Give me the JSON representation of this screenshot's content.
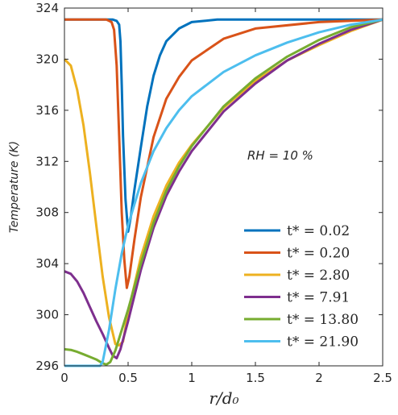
{
  "chart_data": {
    "type": "line",
    "xlabel": "r/d₀",
    "ylabel": "Temperature (K)",
    "annotation": "RH = 10 %",
    "xlim": [
      0,
      2.5
    ],
    "ylim": [
      296,
      324
    ],
    "xticks": [
      "0",
      "0.5",
      "1",
      "1.5",
      "2",
      "2.5"
    ],
    "yticks": [
      "296",
      "300",
      "304",
      "308",
      "312",
      "316",
      "320",
      "324"
    ],
    "grid": false,
    "legend_position": "bottom-right",
    "series": [
      {
        "name": "t* = 0.02",
        "color": "#0072BD",
        "points": [
          [
            0,
            323.1
          ],
          [
            0.2,
            323.1
          ],
          [
            0.38,
            323.1
          ],
          [
            0.41,
            323.0
          ],
          [
            0.43,
            322.7
          ],
          [
            0.44,
            321.4
          ],
          [
            0.45,
            318
          ],
          [
            0.46,
            314
          ],
          [
            0.48,
            309
          ],
          [
            0.5,
            306.5
          ],
          [
            0.52,
            307.6
          ],
          [
            0.55,
            309.8
          ],
          [
            0.6,
            313.1
          ],
          [
            0.65,
            316.3
          ],
          [
            0.7,
            318.7
          ],
          [
            0.75,
            320.3
          ],
          [
            0.8,
            321.4
          ],
          [
            0.9,
            322.4
          ],
          [
            1.0,
            322.9
          ],
          [
            1.2,
            323.1
          ],
          [
            1.5,
            323.1
          ],
          [
            2.0,
            323.1
          ],
          [
            2.5,
            323.1
          ]
        ]
      },
      {
        "name": "t* = 0.20",
        "color": "#D95319",
        "points": [
          [
            0,
            323.1
          ],
          [
            0.2,
            323.1
          ],
          [
            0.33,
            323.1
          ],
          [
            0.37,
            322.9
          ],
          [
            0.39,
            322.3
          ],
          [
            0.41,
            319.5
          ],
          [
            0.43,
            314
          ],
          [
            0.45,
            308
          ],
          [
            0.47,
            304.3
          ],
          [
            0.49,
            302.1
          ],
          [
            0.51,
            303.0
          ],
          [
            0.55,
            305.9
          ],
          [
            0.6,
            309.2
          ],
          [
            0.7,
            313.9
          ],
          [
            0.8,
            316.9
          ],
          [
            0.9,
            318.6
          ],
          [
            1.0,
            319.9
          ],
          [
            1.25,
            321.6
          ],
          [
            1.5,
            322.4
          ],
          [
            2.0,
            322.9
          ],
          [
            2.5,
            323.1
          ]
        ]
      },
      {
        "name": "t* = 2.80",
        "color": "#EDB120",
        "points": [
          [
            0,
            320.0
          ],
          [
            0.05,
            319.5
          ],
          [
            0.1,
            317.6
          ],
          [
            0.15,
            314.8
          ],
          [
            0.2,
            311.1
          ],
          [
            0.25,
            307.0
          ],
          [
            0.3,
            303.0
          ],
          [
            0.35,
            299.8
          ],
          [
            0.4,
            297.7
          ],
          [
            0.43,
            297.6
          ],
          [
            0.46,
            297.9
          ],
          [
            0.5,
            300.2
          ],
          [
            0.6,
            304.5
          ],
          [
            0.7,
            307.7
          ],
          [
            0.8,
            310.1
          ],
          [
            0.9,
            311.9
          ],
          [
            1.0,
            313.3
          ],
          [
            1.25,
            316.2
          ],
          [
            1.5,
            318.3
          ],
          [
            1.75,
            319.9
          ],
          [
            2.0,
            321.1
          ],
          [
            2.25,
            322.2
          ],
          [
            2.5,
            323.1
          ]
        ]
      },
      {
        "name": "t* = 7.91",
        "color": "#7E2F8E",
        "points": [
          [
            0,
            303.4
          ],
          [
            0.05,
            303.2
          ],
          [
            0.1,
            302.6
          ],
          [
            0.15,
            301.7
          ],
          [
            0.2,
            300.6
          ],
          [
            0.25,
            299.5
          ],
          [
            0.3,
            298.5
          ],
          [
            0.35,
            297.4
          ],
          [
            0.38,
            296.8
          ],
          [
            0.41,
            296.6
          ],
          [
            0.44,
            297.3
          ],
          [
            0.5,
            299.5
          ],
          [
            0.6,
            303.5
          ],
          [
            0.7,
            306.8
          ],
          [
            0.8,
            309.3
          ],
          [
            0.9,
            311.2
          ],
          [
            1.0,
            312.8
          ],
          [
            1.25,
            315.9
          ],
          [
            1.5,
            318.1
          ],
          [
            1.75,
            319.9
          ],
          [
            2.0,
            321.2
          ],
          [
            2.25,
            322.3
          ],
          [
            2.5,
            323.1
          ]
        ]
      },
      {
        "name": "t* = 13.80",
        "color": "#77AC30",
        "points": [
          [
            0,
            297.3
          ],
          [
            0.05,
            297.25
          ],
          [
            0.1,
            297.1
          ],
          [
            0.15,
            296.9
          ],
          [
            0.2,
            296.7
          ],
          [
            0.25,
            296.5
          ],
          [
            0.3,
            296.2
          ],
          [
            0.33,
            296.1
          ],
          [
            0.36,
            296.3
          ],
          [
            0.4,
            297.2
          ],
          [
            0.5,
            300.4
          ],
          [
            0.6,
            304.0
          ],
          [
            0.7,
            307.2
          ],
          [
            0.8,
            309.7
          ],
          [
            0.9,
            311.6
          ],
          [
            1.0,
            313.2
          ],
          [
            1.25,
            316.3
          ],
          [
            1.5,
            318.5
          ],
          [
            1.75,
            320.2
          ],
          [
            2.0,
            321.5
          ],
          [
            2.25,
            322.5
          ],
          [
            2.5,
            323.1
          ]
        ]
      },
      {
        "name": "t* = 21.90",
        "color": "#4DBEEE",
        "points": [
          [
            0,
            296.0
          ],
          [
            0.1,
            296.0
          ],
          [
            0.2,
            296.0
          ],
          [
            0.28,
            296.0
          ],
          [
            0.3,
            296.3
          ],
          [
            0.35,
            298.8
          ],
          [
            0.4,
            302.0
          ],
          [
            0.45,
            304.8
          ],
          [
            0.5,
            307.0
          ],
          [
            0.6,
            310.3
          ],
          [
            0.7,
            312.8
          ],
          [
            0.8,
            314.6
          ],
          [
            0.9,
            316.0
          ],
          [
            1.0,
            317.1
          ],
          [
            1.25,
            319.0
          ],
          [
            1.5,
            320.3
          ],
          [
            1.75,
            321.3
          ],
          [
            2.0,
            322.1
          ],
          [
            2.25,
            322.7
          ],
          [
            2.5,
            323.1
          ]
        ]
      }
    ]
  }
}
